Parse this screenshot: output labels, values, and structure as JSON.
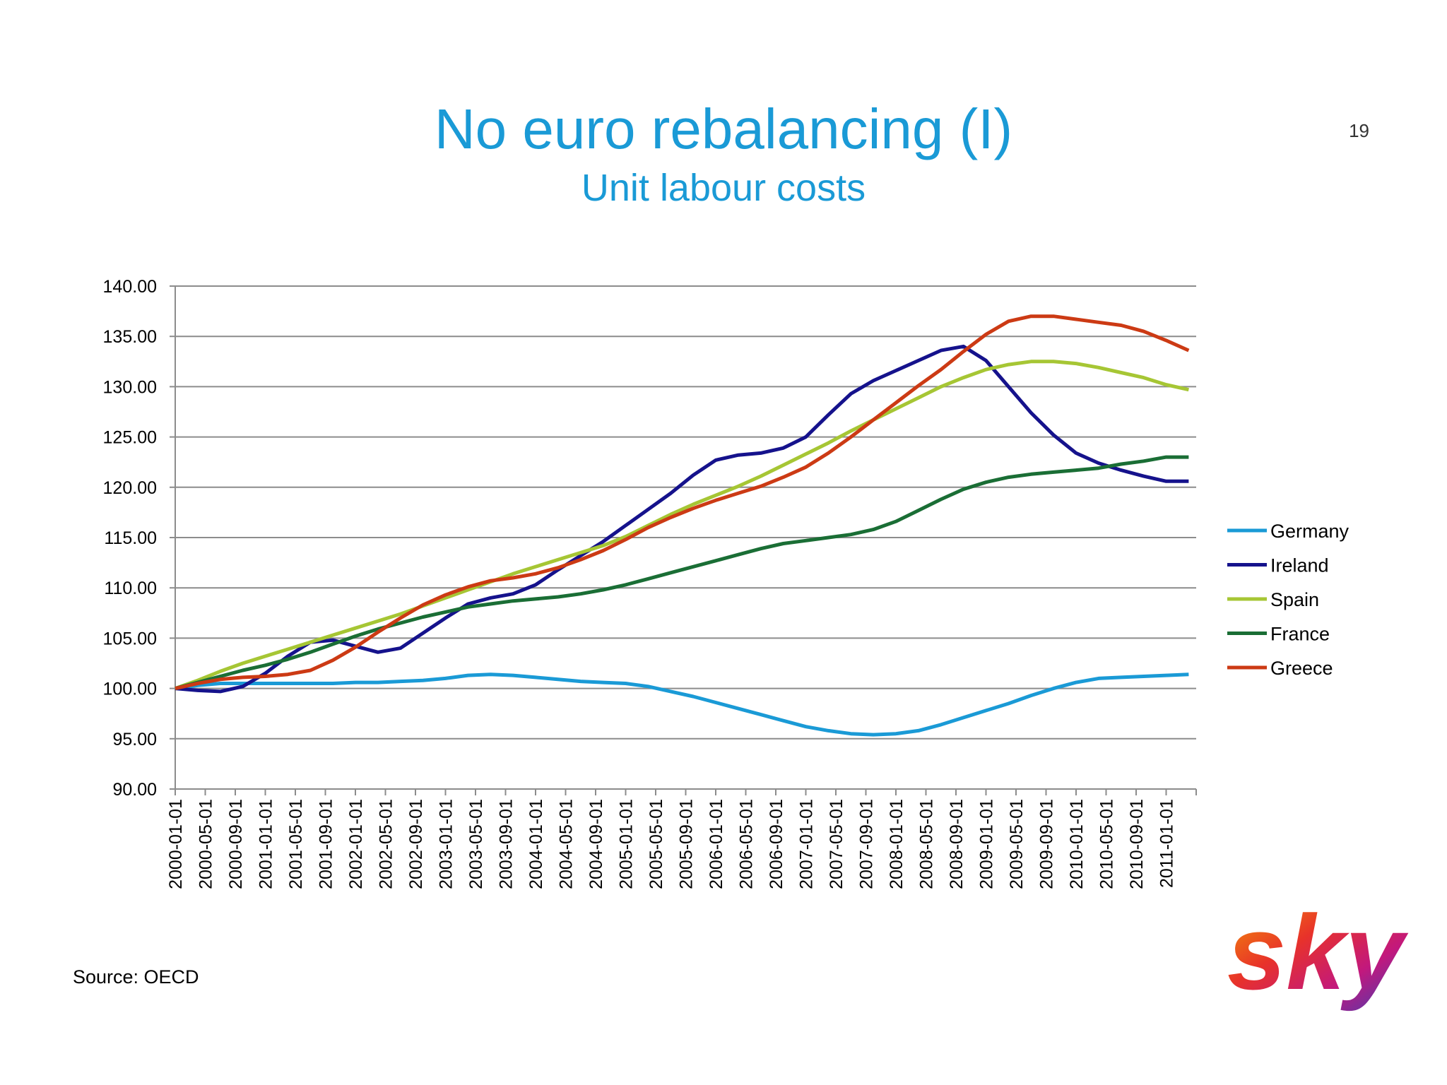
{
  "page_number": "19",
  "source": "Source: OECD",
  "logo": "sky",
  "chart_data": {
    "type": "line",
    "title": "No euro rebalancing (I)",
    "subtitle": "Unit labour costs",
    "x": [
      "2000-01-01",
      "2000-04-01",
      "2000-07-01",
      "2000-10-01",
      "2001-01-01",
      "2001-04-01",
      "2001-07-01",
      "2001-10-01",
      "2002-01-01",
      "2002-04-01",
      "2002-07-01",
      "2002-10-01",
      "2003-01-01",
      "2003-04-01",
      "2003-07-01",
      "2003-10-01",
      "2004-01-01",
      "2004-04-01",
      "2004-07-01",
      "2004-10-01",
      "2005-01-01",
      "2005-04-01",
      "2005-07-01",
      "2005-10-01",
      "2006-01-01",
      "2006-04-01",
      "2006-07-01",
      "2006-10-01",
      "2007-01-01",
      "2007-04-01",
      "2007-07-01",
      "2007-10-01",
      "2008-01-01",
      "2008-04-01",
      "2008-07-01",
      "2008-10-01",
      "2009-01-01",
      "2009-04-01",
      "2009-07-01",
      "2009-10-01",
      "2010-01-01",
      "2010-04-01",
      "2010-07-01",
      "2010-10-01",
      "2011-01-01",
      "2011-04-01"
    ],
    "xlim": [
      "2000-01-01",
      "2011-05-01"
    ],
    "xticks": [
      "2000-01-01",
      "2000-05-01",
      "2000-09-01",
      "2001-01-01",
      "2001-05-01",
      "2001-09-01",
      "2002-01-01",
      "2002-05-01",
      "2002-09-01",
      "2003-01-01",
      "2003-05-01",
      "2003-09-01",
      "2004-01-01",
      "2004-05-01",
      "2004-09-01",
      "2005-01-01",
      "2005-05-01",
      "2005-09-01",
      "2006-01-01",
      "2006-05-01",
      "2006-09-01",
      "2007-01-01",
      "2007-05-01",
      "2007-09-01",
      "2008-01-01",
      "2008-05-01",
      "2008-09-01",
      "2009-01-01",
      "2009-05-01",
      "2009-09-01",
      "2010-01-01",
      "2010-05-01",
      "2010-09-01",
      "2011-01-01"
    ],
    "ylim": [
      90,
      140
    ],
    "yticks": [
      {
        "value": 90,
        "label": "90.00"
      },
      {
        "value": 95,
        "label": "95.00"
      },
      {
        "value": 100,
        "label": "100.00"
      },
      {
        "value": 105,
        "label": "105.00"
      },
      {
        "value": 110,
        "label": "110.00"
      },
      {
        "value": 115,
        "label": "115.00"
      },
      {
        "value": 120,
        "label": "120.00"
      },
      {
        "value": 125,
        "label": "125.00"
      },
      {
        "value": 130,
        "label": "130.00"
      },
      {
        "value": 135,
        "label": "135.00"
      },
      {
        "value": 140,
        "label": "140.00"
      }
    ],
    "grid": true,
    "legend": "right",
    "series": [
      {
        "name": "Germany",
        "color": "#1a9ad6",
        "values": [
          100,
          100.3,
          100.5,
          100.5,
          100.5,
          100.5,
          100.5,
          100.5,
          100.6,
          100.6,
          100.7,
          100.8,
          101.0,
          101.3,
          101.4,
          101.3,
          101.1,
          100.9,
          100.7,
          100.6,
          100.5,
          100.2,
          99.7,
          99.2,
          98.6,
          98.0,
          97.4,
          96.8,
          96.2,
          95.8,
          95.5,
          95.4,
          95.5,
          95.8,
          96.4,
          97.1,
          97.8,
          98.5,
          99.3,
          100.0,
          100.6,
          101.0,
          101.1,
          101.2,
          101.3,
          101.4
        ]
      },
      {
        "name": "Ireland",
        "color": "#15128c",
        "values": [
          100,
          99.8,
          99.7,
          100.2,
          101.5,
          103.2,
          104.6,
          104.8,
          104.2,
          103.6,
          104.0,
          105.5,
          107.0,
          108.4,
          109.0,
          109.4,
          110.3,
          111.8,
          113.2,
          114.6,
          116.2,
          117.8,
          119.4,
          121.2,
          122.7,
          123.2,
          123.4,
          123.9,
          125.0,
          127.2,
          129.3,
          130.6,
          131.6,
          132.6,
          133.6,
          134.0,
          132.6,
          130.0,
          127.4,
          125.2,
          123.4,
          122.4,
          121.7,
          121.1,
          120.6,
          120.6
        ]
      },
      {
        "name": "Spain",
        "color": "#a6c634",
        "values": [
          100,
          100.8,
          101.7,
          102.5,
          103.2,
          103.9,
          104.6,
          105.3,
          106.0,
          106.7,
          107.4,
          108.2,
          109.0,
          109.8,
          110.6,
          111.4,
          112.1,
          112.8,
          113.5,
          114.2,
          115.1,
          116.2,
          117.3,
          118.3,
          119.2,
          120.1,
          121.1,
          122.2,
          123.3,
          124.4,
          125.6,
          126.7,
          127.8,
          128.9,
          130.0,
          130.9,
          131.7,
          132.2,
          132.5,
          132.5,
          132.3,
          131.9,
          131.4,
          130.9,
          130.2,
          129.7
        ]
      },
      {
        "name": "France",
        "color": "#1a6e35",
        "values": [
          100,
          100.6,
          101.2,
          101.8,
          102.3,
          102.9,
          103.6,
          104.4,
          105.2,
          105.9,
          106.5,
          107.1,
          107.6,
          108.1,
          108.4,
          108.7,
          108.9,
          109.1,
          109.4,
          109.8,
          110.3,
          110.9,
          111.5,
          112.1,
          112.7,
          113.3,
          113.9,
          114.4,
          114.7,
          115.0,
          115.3,
          115.8,
          116.6,
          117.7,
          118.8,
          119.8,
          120.5,
          121.0,
          121.3,
          121.5,
          121.7,
          121.9,
          122.3,
          122.6,
          123.0,
          123.0
        ]
      },
      {
        "name": "Greece",
        "color": "#cc3a14",
        "values": [
          100,
          100.5,
          100.9,
          101.1,
          101.2,
          101.4,
          101.8,
          102.8,
          104.1,
          105.6,
          107.0,
          108.3,
          109.3,
          110.1,
          110.7,
          111.0,
          111.4,
          112.0,
          112.8,
          113.7,
          114.8,
          116.0,
          117.0,
          117.9,
          118.7,
          119.4,
          120.1,
          121.0,
          122.0,
          123.4,
          125.0,
          126.7,
          128.4,
          130.1,
          131.7,
          133.5,
          135.2,
          136.5,
          137.0,
          137.0,
          136.7,
          136.4,
          136.1,
          135.5,
          134.6,
          133.6
        ]
      }
    ]
  }
}
